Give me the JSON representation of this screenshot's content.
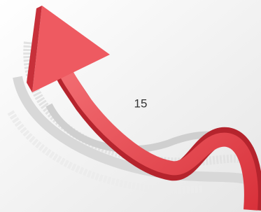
{
  "label": "15"
}
